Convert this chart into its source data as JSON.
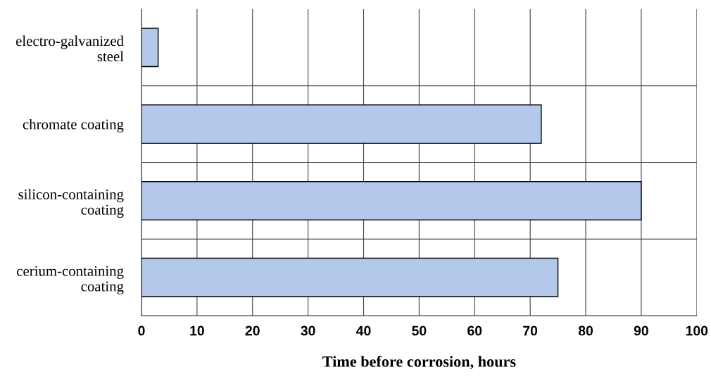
{
  "chart_data": {
    "type": "bar",
    "orientation": "horizontal",
    "categories": [
      "electro-galvanized steel",
      "chromate coating",
      "silicon-containing coating",
      "cerium-containing coating"
    ],
    "values": [
      3,
      72,
      90,
      75
    ],
    "color": "#b4c8ec",
    "xlabel": "Time before corrosion, hours",
    "xlim": [
      0,
      100
    ],
    "xticks": [
      0,
      10,
      20,
      30,
      40,
      50,
      60,
      70,
      80,
      90,
      100
    ],
    "grid": true
  }
}
